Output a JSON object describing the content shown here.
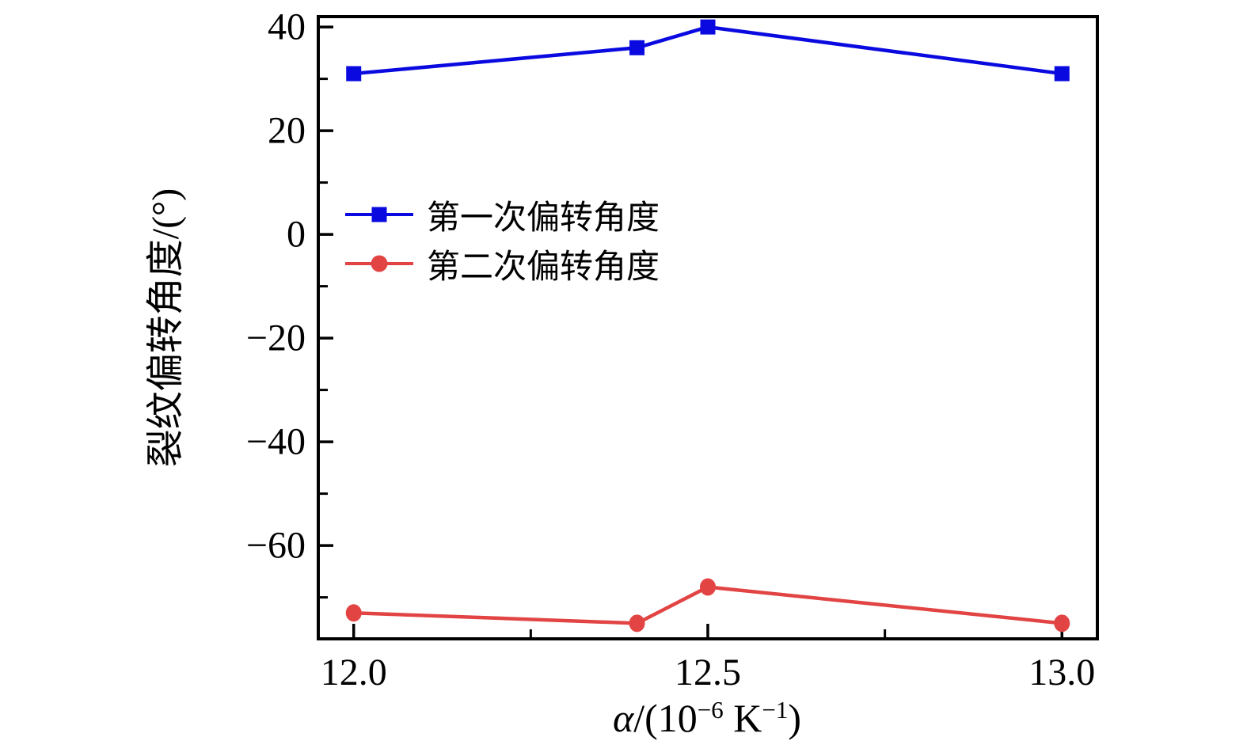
{
  "figure": {
    "background": "#ffffff",
    "axis_color": "#000000"
  },
  "chart_data": {
    "type": "line",
    "title": "",
    "x": [
      12.0,
      12.4,
      12.5,
      13.0
    ],
    "series": [
      {
        "name": "第一次偏转角度",
        "marker": "square",
        "color": "#0a0ae0",
        "values": [
          31,
          36,
          40,
          31
        ]
      },
      {
        "name": "第二次偏转角度",
        "marker": "circle",
        "color": "#e24444",
        "values": [
          -73,
          -75,
          -68,
          -75
        ]
      }
    ],
    "xlabel": "α/(10⁻⁶ K⁻¹)",
    "xlabel_parts": {
      "alpha": "α",
      "open": "/(10",
      "sup1": "−6",
      "mid": " K",
      "sup2": "−1",
      "close": ")"
    },
    "ylabel": "裂纹偏转角度/(°)",
    "xlim": [
      11.95,
      13.05
    ],
    "ylim": [
      -78,
      42
    ],
    "xticks_major": [
      {
        "value": 12.0,
        "label": "12.0"
      },
      {
        "value": 12.5,
        "label": "12.5"
      },
      {
        "value": 13.0,
        "label": "13.0"
      }
    ],
    "xticks_minor": [
      12.25,
      12.75
    ],
    "yticks_major": [
      {
        "value": 40,
        "label": "40"
      },
      {
        "value": 20,
        "label": "20"
      },
      {
        "value": 0,
        "label": "0"
      },
      {
        "value": -20,
        "label": "−20"
      },
      {
        "value": -40,
        "label": "−40"
      },
      {
        "value": -60,
        "label": "−60"
      }
    ],
    "yticks_minor": [
      30,
      10,
      -10,
      -30,
      -50,
      -70
    ],
    "grid": false,
    "legend_position": "inside-upper-left"
  }
}
